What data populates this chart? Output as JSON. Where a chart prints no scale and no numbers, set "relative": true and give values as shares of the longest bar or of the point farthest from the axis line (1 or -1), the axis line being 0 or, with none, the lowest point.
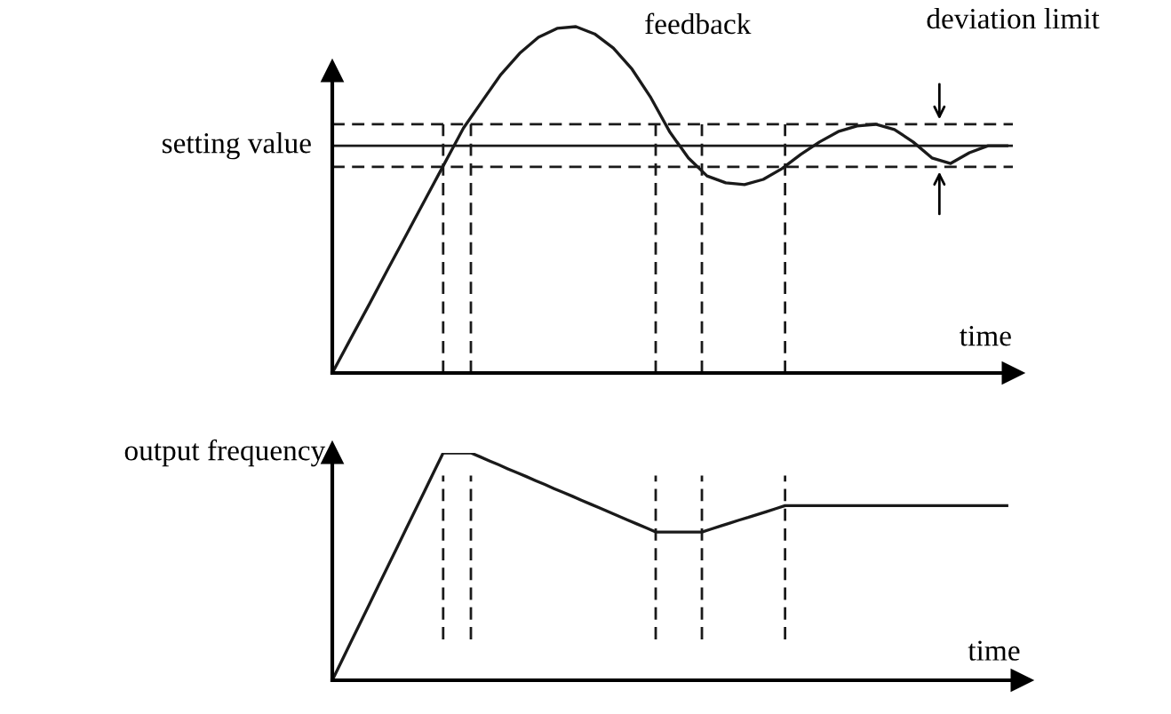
{
  "chart_data": [
    {
      "type": "line",
      "relative": true,
      "grid": "x",
      "xlabel": "time",
      "categories": [
        null,
        null,
        null,
        null,
        null,
        null,
        null,
        null,
        null,
        null,
        null,
        null,
        null,
        null,
        null,
        null,
        null,
        null,
        null,
        null,
        null,
        null,
        null,
        null,
        null,
        null,
        null,
        null,
        null,
        null,
        null,
        null,
        null,
        null,
        null,
        null,
        null
      ],
      "series": [
        {
          "name": "feedback",
          "color": "#1a1a1a",
          "values": [
            0,
            0.101,
            0.201,
            0.303,
            0.404,
            0.505,
            0.606,
            0.707,
            0.785,
            0.862,
            0.923,
            0.969,
            0.995,
            1,
            0.979,
            0.938,
            0.877,
            0.795,
            0.697,
            0.621,
            0.569,
            0.549,
            0.544,
            0.559,
            0.59,
            0.631,
            0.667,
            0.697,
            0.713,
            0.718,
            0.703,
            0.667,
            0.621,
            0.605,
            0.636,
            0.656,
            0.656
          ]
        }
      ],
      "ref_lines": [
        {
          "axis": "y",
          "value": 0.656,
          "label": "setting value",
          "line_style": "solid",
          "color": "#1a1a1a"
        },
        {
          "axis": "y",
          "value": 0.718,
          "line_style": "dashed",
          "color": "#1a1a1a"
        },
        {
          "axis": "y",
          "value": 0.595,
          "line_style": "dashed",
          "color": "#1a1a1a"
        }
      ],
      "annotations": [
        "deviation limit"
      ]
    },
    {
      "type": "line",
      "relative": true,
      "grid": "x",
      "xlabel": "time",
      "ylabel": "output frequency",
      "categories": [
        null,
        null,
        null,
        null,
        null,
        null,
        null,
        null,
        null,
        null,
        null,
        null,
        null,
        null,
        null,
        null,
        null,
        null,
        null,
        null,
        null,
        null,
        null,
        null,
        null,
        null,
        null,
        null,
        null,
        null,
        null,
        null,
        null,
        null,
        null,
        null,
        null,
        null,
        null,
        null,
        null,
        null,
        null,
        null,
        null,
        null,
        null,
        null,
        null,
        null,
        null,
        null,
        null,
        null,
        null,
        null,
        null,
        null,
        null,
        null,
        null,
        null,
        null,
        null,
        null,
        null,
        null,
        null,
        null,
        null,
        null,
        null,
        null,
        null
      ],
      "series": [
        {
          "color": "#1a1a1a",
          "values": [
            0,
            0.083,
            0.167,
            0.25,
            0.333,
            0.417,
            0.5,
            0.583,
            0.667,
            0.75,
            0.833,
            0.917,
            1,
            1,
            1,
            1,
            0.983,
            0.965,
            0.948,
            0.93,
            0.913,
            0.896,
            0.878,
            0.861,
            0.843,
            0.826,
            0.809,
            0.791,
            0.774,
            0.757,
            0.739,
            0.722,
            0.704,
            0.687,
            0.67,
            0.652,
            0.652,
            0.652,
            0.652,
            0.652,
            0.652,
            0.665,
            0.678,
            0.691,
            0.704,
            0.716,
            0.729,
            0.742,
            0.755,
            0.768,
            0.768,
            0.768,
            0.768,
            0.768,
            0.768,
            0.768,
            0.768,
            0.768,
            0.768,
            0.768,
            0.768,
            0.768,
            0.768,
            0.768,
            0.768,
            0.768,
            0.768,
            0.768,
            0.768,
            0.768,
            0.768,
            0.768,
            0.768,
            0.768
          ]
        }
      ]
    }
  ]
}
